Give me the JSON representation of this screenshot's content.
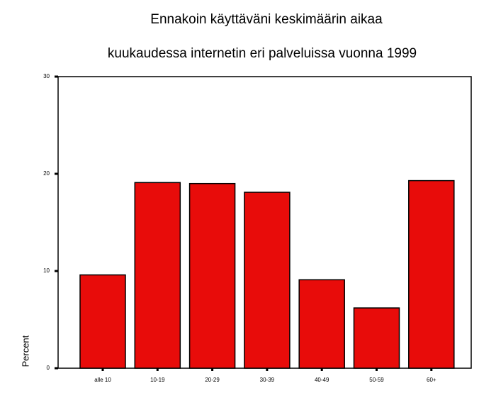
{
  "chart_data": {
    "type": "bar",
    "title": [
      "Ennakoin käyttäväni keskimäärin aikaa",
      "kuukaudessa internetin eri palveluissa vuonna 1999"
    ],
    "y_label": "Percent",
    "categories": [
      "alle 10",
      "10-19",
      "20-29",
      "30-39",
      "40-49",
      "50-59",
      "60+"
    ],
    "values": [
      9.6,
      19.1,
      19.0,
      18.1,
      9.1,
      6.2,
      19.3
    ],
    "color": "#e80c0a",
    "ylim": [
      0,
      30
    ],
    "yticks": [
      0,
      10,
      20,
      30
    ]
  }
}
